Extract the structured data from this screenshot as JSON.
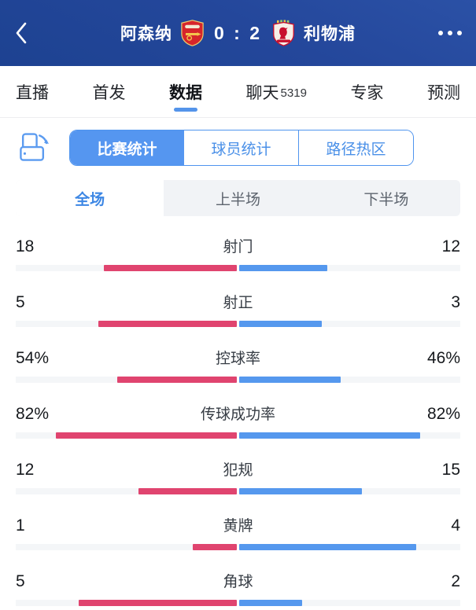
{
  "header": {
    "back_icon": "chevron-left-icon",
    "home_team": "阿森纳",
    "home_crest_icon": "arsenal-crest-icon",
    "score": "0 : 2",
    "away_crest_icon": "liverpool-crest-icon",
    "away_team": "利物浦",
    "more_icon": "ellipsis-icon",
    "bg_color": "#22479b"
  },
  "tabs": {
    "items": [
      {
        "label": "直播",
        "active": false
      },
      {
        "label": "首发",
        "active": false
      },
      {
        "label": "数据",
        "active": true
      },
      {
        "label": "聊天",
        "badge": "5319",
        "active": false
      },
      {
        "label": "专家",
        "active": false
      },
      {
        "label": "预测",
        "active": false
      }
    ],
    "active_underline_color": "#5494ea"
  },
  "stat_toolbar": {
    "rotate_icon": "rotate-device-icon",
    "accent_color": "#4f94ee",
    "segments": [
      {
        "label": "比赛统计",
        "active": true
      },
      {
        "label": "球员统计",
        "active": false
      },
      {
        "label": "路径热区",
        "active": false
      }
    ]
  },
  "period_tabs": [
    {
      "label": "全场",
      "active": true
    },
    {
      "label": "上半场",
      "active": false
    },
    {
      "label": "下半场",
      "active": false
    }
  ],
  "chart_data": {
    "type": "bar",
    "orientation": "horizontal-diverging-from-center",
    "title": "比赛统计 - 全场",
    "teams": [
      {
        "name": "阿森纳",
        "side": "left",
        "color": "#e0446f"
      },
      {
        "name": "利物浦",
        "side": "right",
        "color": "#5598ee"
      }
    ],
    "track_color": "#f4f6f8",
    "rows": [
      {
        "label": "射门",
        "left": "18",
        "right": "12",
        "left_frac": 60,
        "right_frac": 40
      },
      {
        "label": "射正",
        "left": "5",
        "right": "3",
        "left_frac": 62.5,
        "right_frac": 37.5
      },
      {
        "label": "控球率",
        "left": "54%",
        "right": "46%",
        "left_frac": 54,
        "right_frac": 46
      },
      {
        "label": "传球成功率",
        "left": "82%",
        "right": "82%",
        "left_frac": 82,
        "right_frac": 82
      },
      {
        "label": "犯规",
        "left": "12",
        "right": "15",
        "left_frac": 44.4,
        "right_frac": 55.6
      },
      {
        "label": "黄牌",
        "left": "1",
        "right": "4",
        "left_frac": 20,
        "right_frac": 80
      },
      {
        "label": "角球",
        "left": "5",
        "right": "2",
        "left_frac": 71.4,
        "right_frac": 28.6
      }
    ]
  }
}
